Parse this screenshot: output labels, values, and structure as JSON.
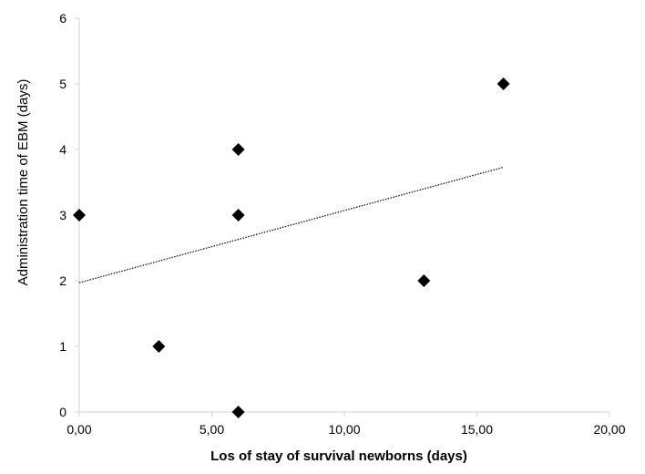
{
  "chart_data": {
    "type": "scatter",
    "title": "",
    "xlabel": "Los of stay of survival newborns (days)",
    "ylabel": "Administration time of EBM (days)",
    "xlim": [
      0,
      20
    ],
    "ylim": [
      0,
      6
    ],
    "x_ticks": [
      0,
      5,
      10,
      15,
      20
    ],
    "x_tick_labels": [
      "0,00",
      "5,00",
      "10,00",
      "15,00",
      "20,00"
    ],
    "y_ticks": [
      0,
      1,
      2,
      3,
      4,
      5,
      6
    ],
    "y_tick_labels": [
      "0",
      "1",
      "2",
      "3",
      "4",
      "5",
      "6"
    ],
    "grid": false,
    "legend": "none",
    "marker": "diamond",
    "marker_color": "#000000",
    "points": [
      {
        "x": 0,
        "y": 3
      },
      {
        "x": 3,
        "y": 1
      },
      {
        "x": 6,
        "y": 4
      },
      {
        "x": 6,
        "y": 3
      },
      {
        "x": 6,
        "y": 0
      },
      {
        "x": 13,
        "y": 2
      },
      {
        "x": 16,
        "y": 5
      }
    ],
    "trendline": {
      "type": "linear",
      "style": "dotted",
      "color": "#000000",
      "x_range": [
        0,
        16
      ],
      "slope": 0.11,
      "intercept": 1.97
    }
  }
}
